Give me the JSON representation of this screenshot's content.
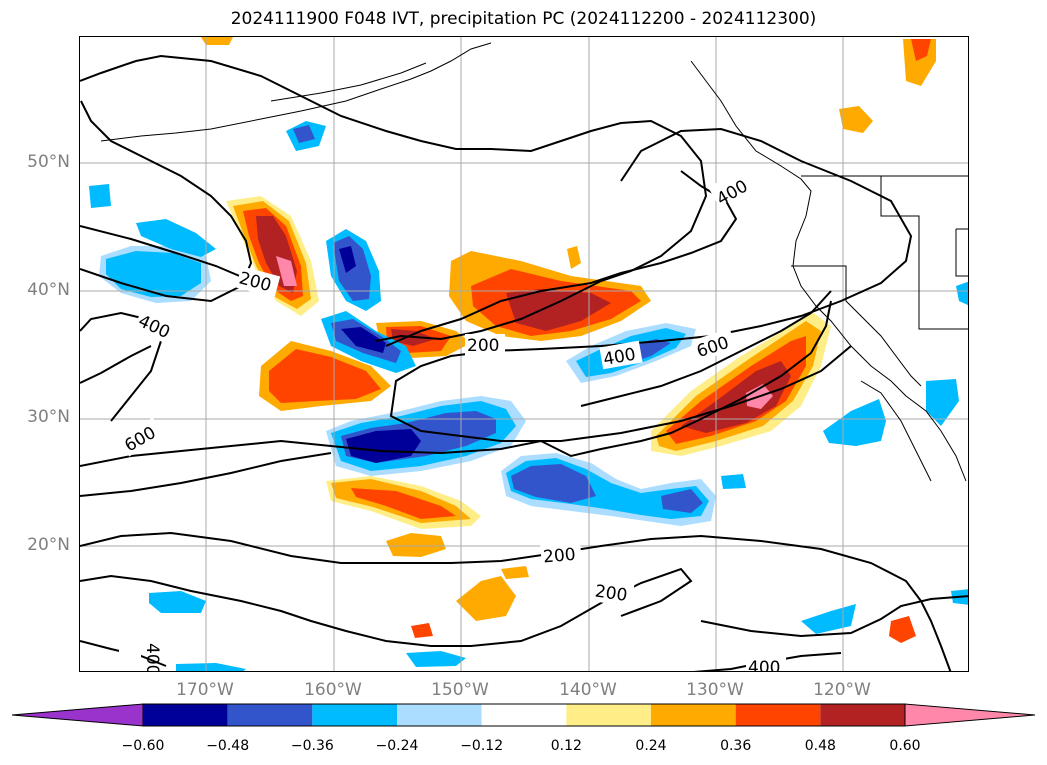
{
  "title": "2024111900 F048 IVT, precipitation PC (2024112200 - 2024112300)",
  "lat_labels": [
    "50°N",
    "40°N",
    "30°N",
    "20°N"
  ],
  "lon_labels": [
    "170°W",
    "160°W",
    "150°W",
    "140°W",
    "130°W",
    "120°W"
  ],
  "colorbar": {
    "ticks": [
      "−0.60",
      "−0.48",
      "−0.36",
      "−0.24",
      "−0.12",
      "0.12",
      "0.24",
      "0.36",
      "0.48",
      "0.60"
    ],
    "colors": [
      "#9933cc",
      "#000099",
      "#3355cc",
      "#00bbff",
      "#aaddff",
      "#ffffff",
      "#ffee88",
      "#ffaa00",
      "#ff4400",
      "#b22222",
      "#ff88aa"
    ]
  },
  "contour_labels": [
    "400",
    "200",
    "400",
    "600",
    "200",
    "400",
    "600",
    "200",
    "200",
    "400",
    "400"
  ]
}
